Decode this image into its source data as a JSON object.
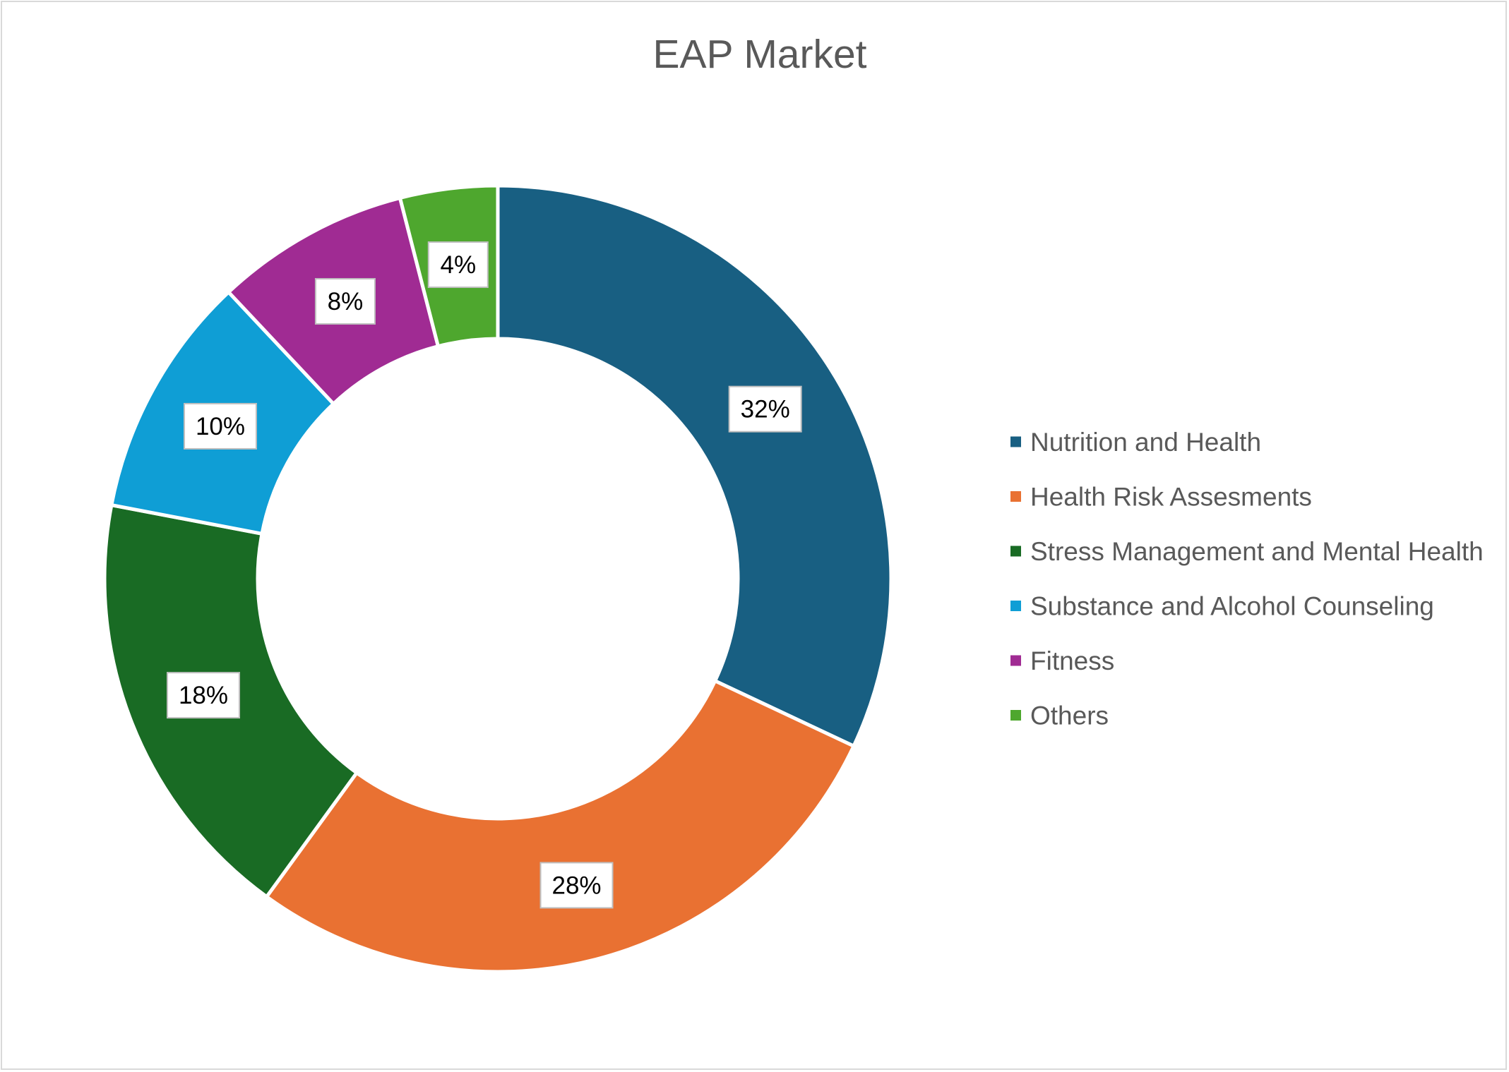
{
  "chart_data": {
    "type": "pie",
    "variant": "donut",
    "title": "EAP Market",
    "categories": [
      "Nutrition and Health",
      "Health Risk Assesments",
      "Stress Management and Mental Health",
      "Substance and Alcohol Counseling",
      "Fitness",
      "Others"
    ],
    "values": [
      32,
      28,
      18,
      10,
      8,
      4
    ],
    "data_labels": [
      "32%",
      "28%",
      "18%",
      "10%",
      "8%",
      "4%"
    ],
    "colors": [
      "#185f82",
      "#e97132",
      "#196b24",
      "#0f9ed5",
      "#a02b93",
      "#4ea72e"
    ],
    "legend_position": "right",
    "xlabel": "",
    "ylabel": ""
  }
}
